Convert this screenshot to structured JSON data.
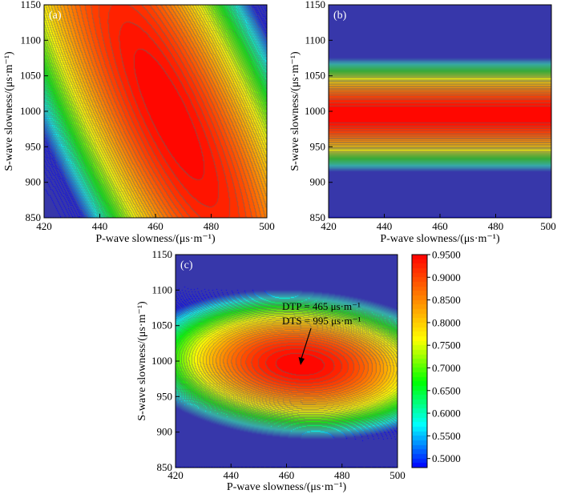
{
  "chart_data": [
    {
      "type": "heatmap",
      "panel_label": "(a)",
      "xlabel": "P-wave slowness/(μs·m⁻¹)",
      "ylabel": "S-wave slowness/(μs·m⁻¹)",
      "xlim": [
        420,
        500
      ],
      "ylim": [
        850,
        1150
      ],
      "xticks": [
        "420",
        "440",
        "460",
        "480",
        "500"
      ],
      "yticks": [
        "850",
        "900",
        "950",
        "1000",
        "1050",
        "1100",
        "1150"
      ],
      "surface": {
        "model": "ridge",
        "peak_dtp": 465,
        "peak_dts": 995,
        "peak_value": 0.95
      }
    },
    {
      "type": "heatmap",
      "panel_label": "(b)",
      "xlabel": "P-wave slowness/(μs·m⁻¹)",
      "ylabel": "S-wave slowness/(μs·m⁻¹)",
      "xlim": [
        420,
        500
      ],
      "ylim": [
        850,
        1150
      ],
      "xticks": [
        "420",
        "440",
        "460",
        "480",
        "500"
      ],
      "yticks": [
        "850",
        "900",
        "950",
        "1000",
        "1050",
        "1100",
        "1150"
      ],
      "surface": {
        "model": "horizontal-bands",
        "peak_dts": 995,
        "peak_value": 0.95
      }
    },
    {
      "type": "heatmap",
      "panel_label": "(c)",
      "xlabel": "P-wave slowness/(μs·m⁻¹)",
      "ylabel": "S-wave slowness/(μs·m⁻¹)",
      "xlim": [
        420,
        500
      ],
      "ylim": [
        850,
        1150
      ],
      "xticks": [
        "420",
        "440",
        "460",
        "480",
        "500"
      ],
      "yticks": [
        "850",
        "900",
        "950",
        "1000",
        "1050",
        "1100",
        "1150"
      ],
      "surface": {
        "model": "elliptical-peak",
        "peak_dtp": 465,
        "peak_dts": 995,
        "peak_value": 0.95
      },
      "annotation": {
        "lines": [
          "DTP = 465 μs·m⁻¹",
          "DTS = 995 μs·m⁻¹"
        ],
        "arrow_to": [
          465,
          995
        ]
      }
    }
  ],
  "colorbar": {
    "range": [
      0.48,
      0.95
    ],
    "ticks": [
      "0.9500",
      "0.9000",
      "0.8500",
      "0.8000",
      "0.7500",
      "0.7000",
      "0.6500",
      "0.6000",
      "0.5500",
      "0.5000"
    ],
    "tick_values": [
      0.95,
      0.9,
      0.85,
      0.8,
      0.75,
      0.7,
      0.65,
      0.6,
      0.55,
      0.5
    ],
    "colormap": [
      "#0000ff",
      "#00ffff",
      "#00ff00",
      "#ffff00",
      "#ff8000",
      "#ff0000"
    ]
  }
}
